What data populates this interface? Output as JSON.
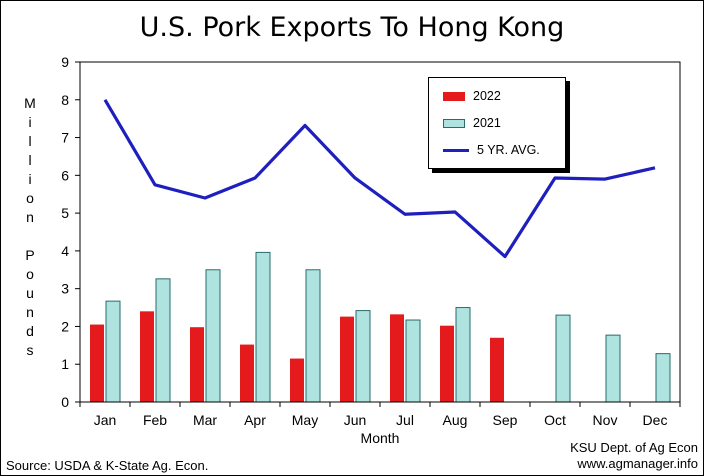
{
  "title": "U.S. Pork Exports To Hong Kong",
  "source": "Source:  USDA & K-State Ag. Econ.",
  "credit_line1": "KSU Dept. of Ag Econ",
  "credit_line2": "www.agmanager.info",
  "colors": {
    "series_2022": "#e41a1c",
    "series_2021": "#aee3e0",
    "series_avg": "#1f1fbf",
    "bar_2021_border": "#2a6b6b"
  },
  "chart_data": {
    "type": "bar",
    "title": "U.S. Pork Exports To Hong Kong",
    "xlabel": "Month",
    "ylabel": "Million Pounds",
    "ylim": [
      0,
      9
    ],
    "yticks": [
      0,
      1,
      2,
      3,
      4,
      5,
      6,
      7,
      8,
      9
    ],
    "grid": false,
    "legend_placement": "top-right",
    "categories": [
      "Jan",
      "Feb",
      "Mar",
      "Apr",
      "May",
      "Jun",
      "Jul",
      "Aug",
      "Sep",
      "Oct",
      "Nov",
      "Dec"
    ],
    "series": [
      {
        "name": "2022",
        "type": "bar",
        "values": [
          2.05,
          2.4,
          1.98,
          1.52,
          1.15,
          2.26,
          2.32,
          2.02,
          1.7,
          null,
          null,
          null
        ]
      },
      {
        "name": "2021",
        "type": "bar",
        "values": [
          2.67,
          3.26,
          3.5,
          3.96,
          3.5,
          2.42,
          2.17,
          2.5,
          null,
          2.3,
          1.77,
          1.28
        ]
      },
      {
        "name": "5 YR. AVG.",
        "type": "line",
        "values": [
          8.0,
          5.75,
          5.4,
          5.93,
          7.32,
          5.93,
          4.97,
          5.03,
          3.85,
          5.93,
          5.9,
          6.2
        ]
      }
    ]
  }
}
